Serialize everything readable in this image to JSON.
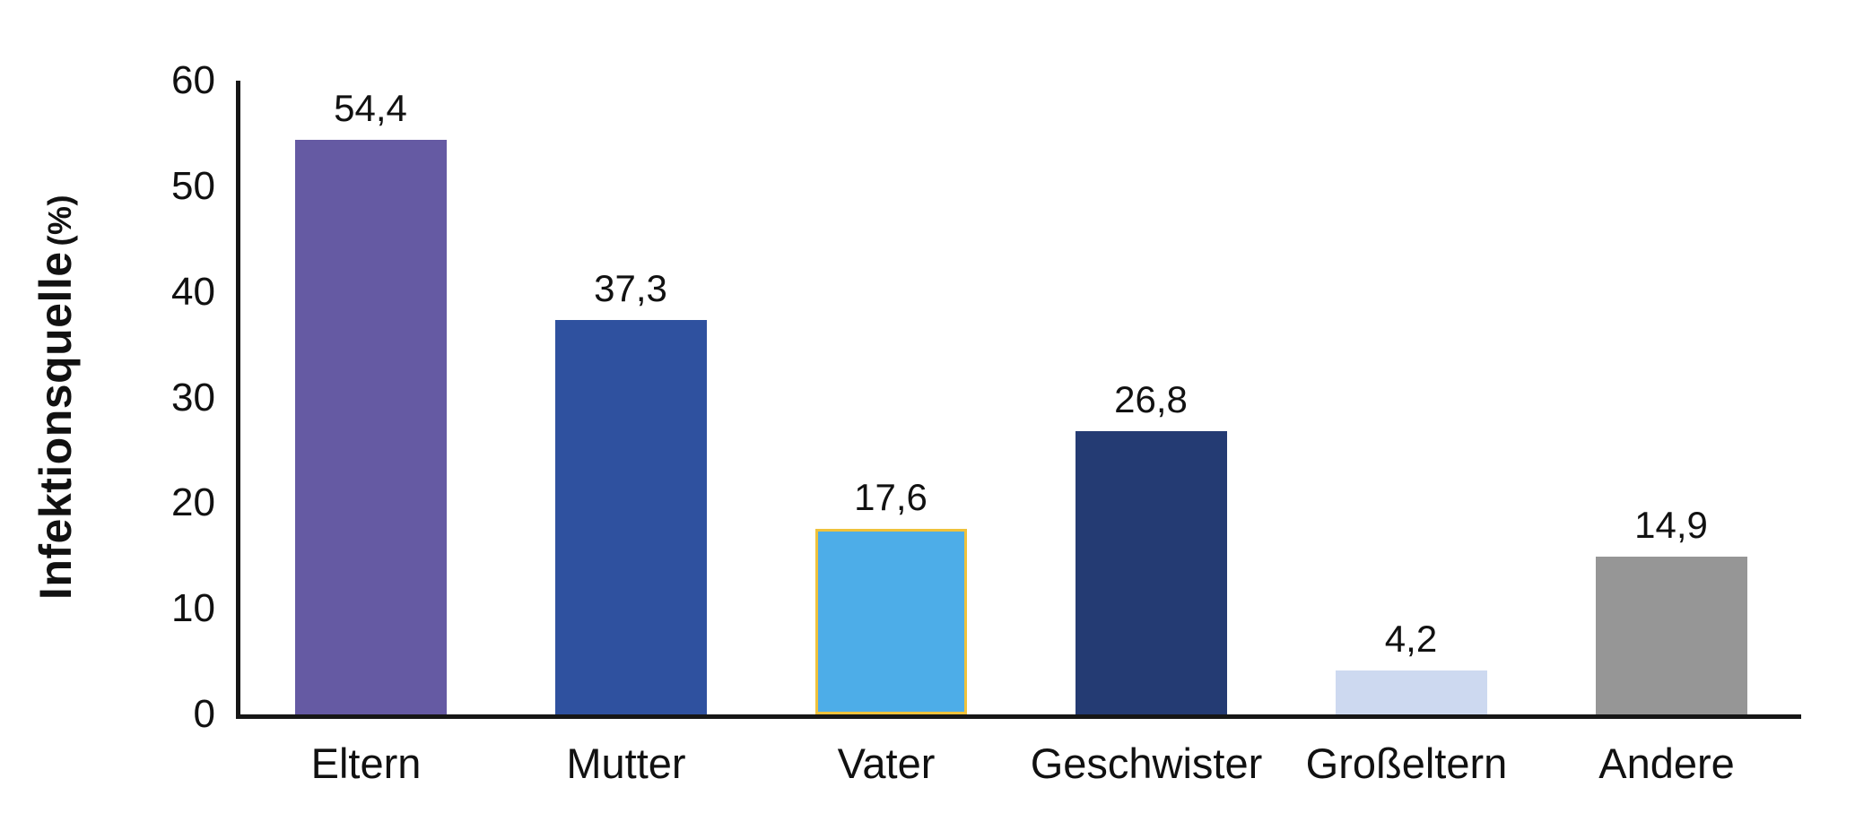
{
  "chart_data": {
    "type": "bar",
    "title": "",
    "ylabel": "Infektionsquelle",
    "ylabel_unit": "(%)",
    "xlabel": "",
    "categories": [
      "Eltern",
      "Mutter",
      "Vater",
      "Geschwister",
      "Großeltern",
      "Andere"
    ],
    "values": [
      54.4,
      37.3,
      17.6,
      26.8,
      4.2,
      14.9
    ],
    "value_labels": [
      "54,4",
      "37,3",
      "17,6",
      "26,8",
      "4,2",
      "14,9"
    ],
    "bar_colors": [
      "#655AA3",
      "#2F519F",
      "#4DADE8",
      "#243B73",
      "#CDD9F0",
      "#969696"
    ],
    "bar_border_colors": [
      null,
      null,
      "#EFC23C",
      null,
      null,
      null
    ],
    "ylim": [
      0,
      60
    ],
    "yticks": [
      0,
      10,
      20,
      30,
      40,
      50,
      60
    ],
    "ytick_labels": [
      "0",
      "10",
      "20",
      "30",
      "40",
      "50",
      "60"
    ],
    "grid": false,
    "legend": null,
    "axis_color": "#161616"
  }
}
